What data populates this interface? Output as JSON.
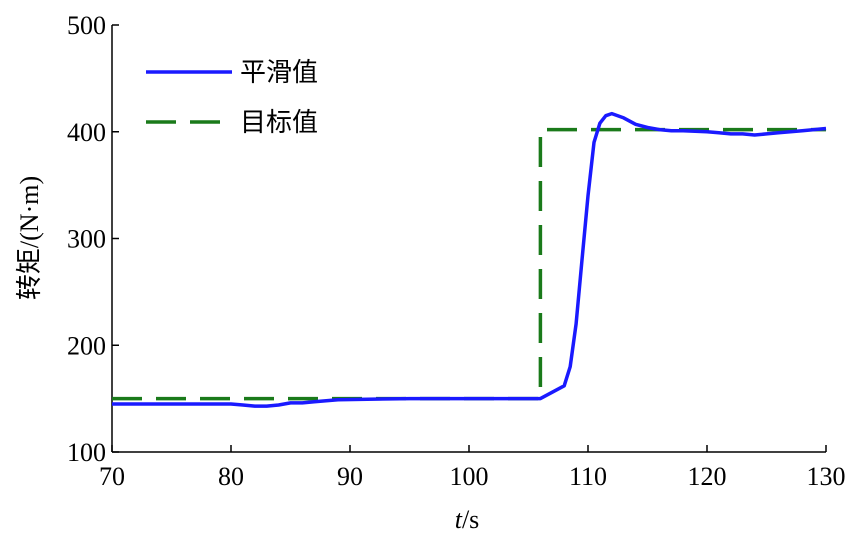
{
  "chart_data": {
    "type": "line",
    "title": "",
    "xlabel_italic": "t",
    "xlabel_rest": "/s",
    "ylabel": "转矩/(N·m)",
    "xlim": [
      70,
      130
    ],
    "ylim": [
      100,
      500
    ],
    "xticks": [
      70,
      80,
      90,
      100,
      110,
      120,
      130
    ],
    "yticks": [
      100,
      200,
      300,
      400,
      500
    ],
    "grid": false,
    "legend_position": "top-left",
    "series": [
      {
        "name": "平滑值",
        "color": "#1a1aff",
        "style": "solid",
        "x": [
          70,
          75,
          80,
          81,
          82,
          83,
          84,
          85,
          86,
          87,
          88,
          89,
          95,
          100,
          105,
          106,
          107,
          108,
          108.5,
          109,
          109.5,
          110,
          110.5,
          111,
          111.5,
          112,
          113,
          114,
          115,
          116,
          117,
          118,
          120,
          121,
          122,
          123,
          124,
          125,
          126,
          127,
          128,
          130
        ],
        "y": [
          145,
          145,
          145,
          144,
          143,
          143,
          144,
          146,
          146,
          147,
          148,
          149,
          150,
          150,
          150,
          150,
          156,
          162,
          180,
          220,
          280,
          340,
          390,
          408,
          415,
          417,
          413,
          407,
          404,
          402,
          401,
          401,
          400,
          399,
          398,
          398,
          397,
          398,
          399,
          400,
          401,
          403
        ]
      },
      {
        "name": "目标值",
        "color": "#1a7a1a",
        "style": "dashed",
        "x": [
          70,
          106,
          106,
          130
        ],
        "y": [
          150,
          150,
          402,
          402
        ]
      }
    ]
  }
}
